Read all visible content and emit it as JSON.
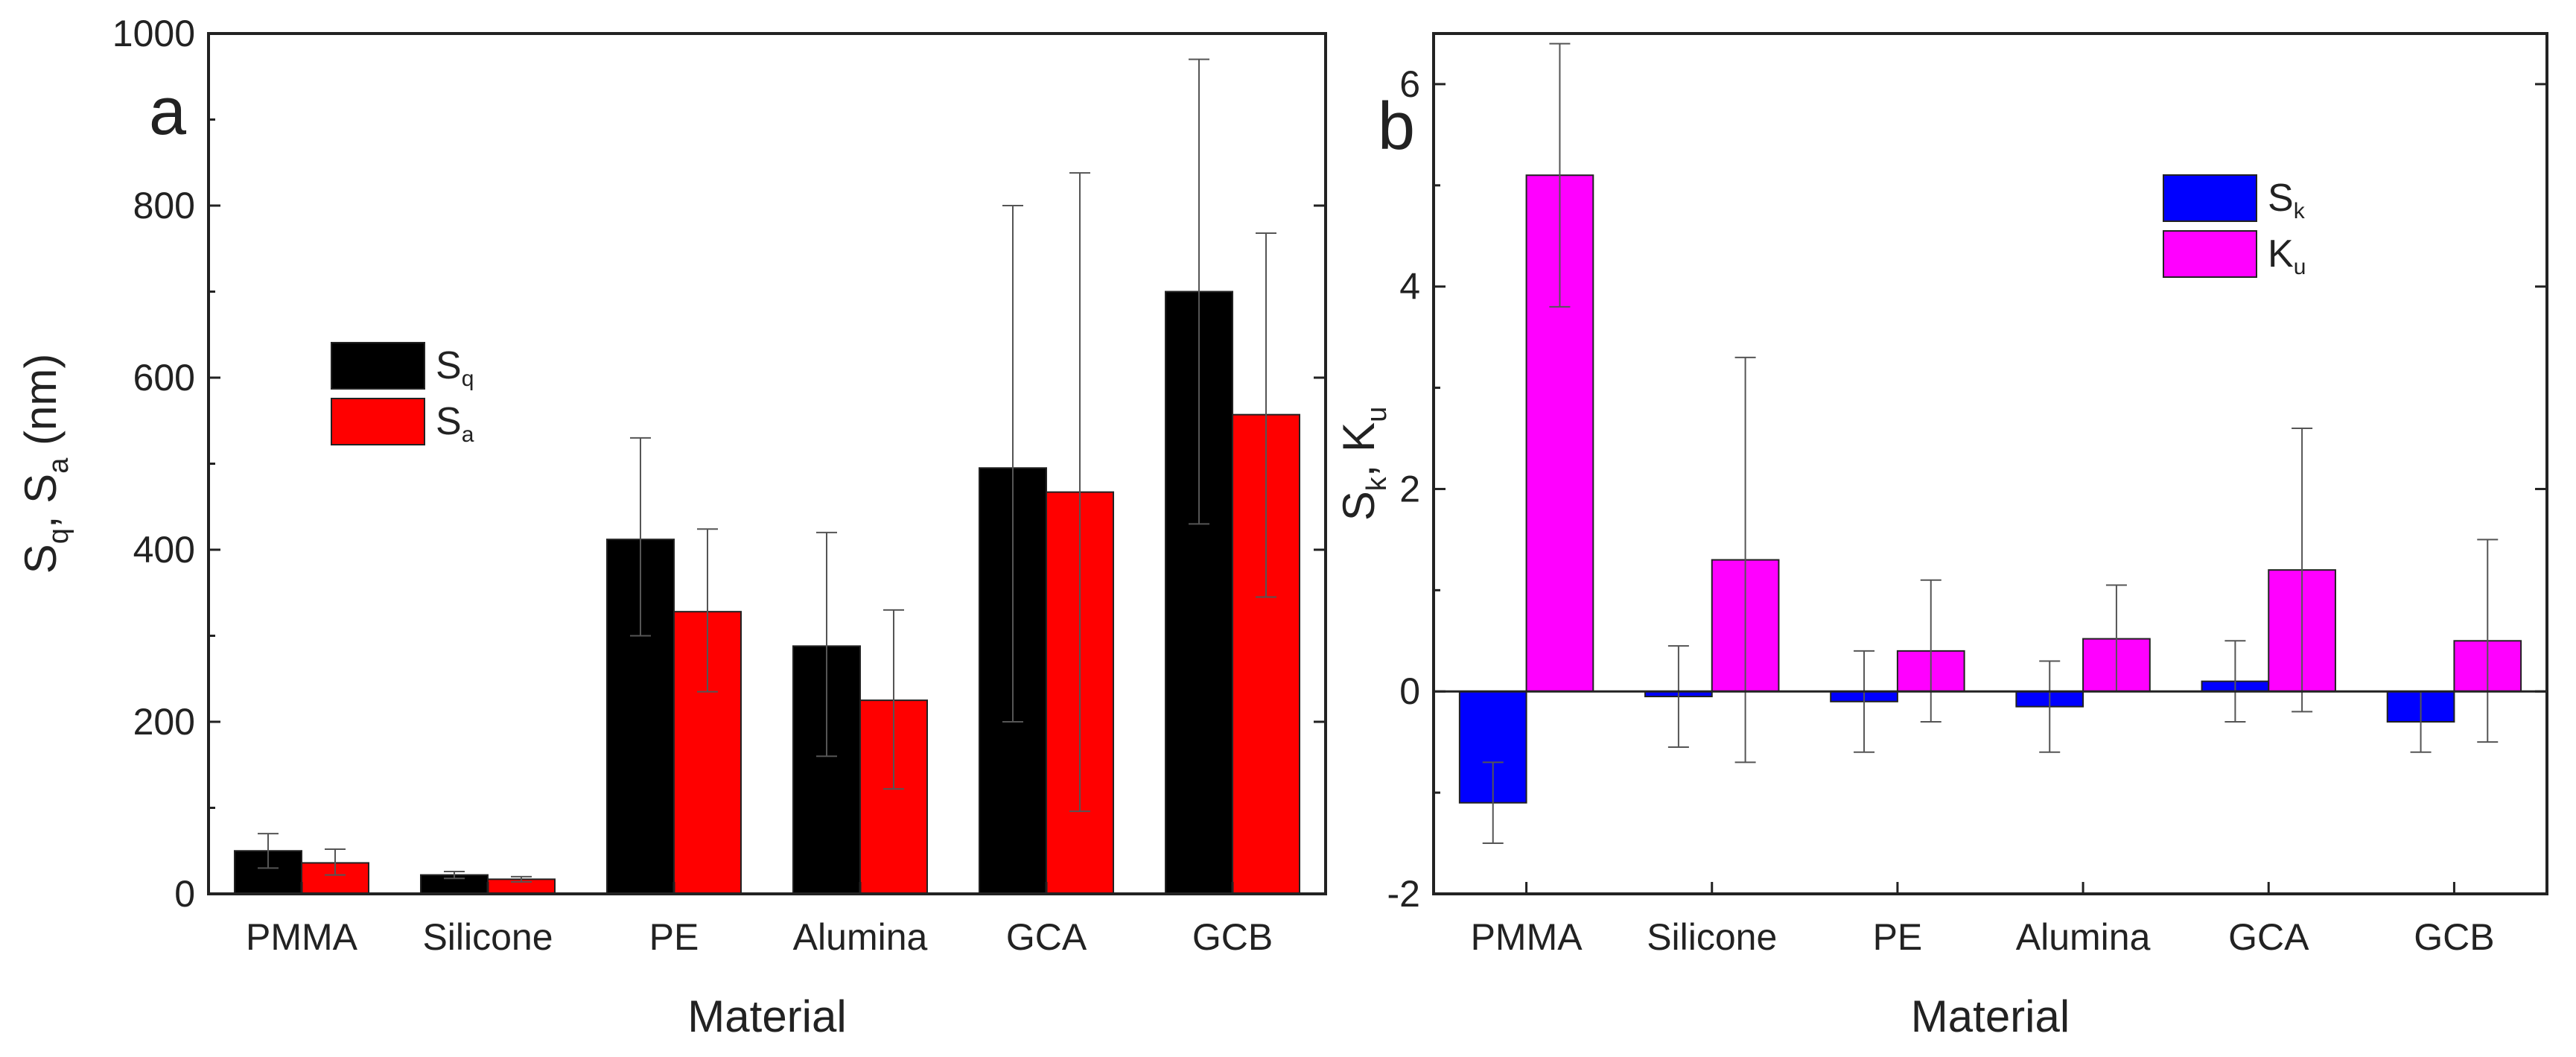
{
  "chart_data": [
    {
      "panel": "a",
      "type": "bar",
      "categories": [
        "PMMA",
        "Silicone",
        "PE",
        "Alumina",
        "GCA",
        "GCB"
      ],
      "xlabel": "Material",
      "ylabel": {
        "main1": "S",
        "sub1": "q",
        "sep": ", ",
        "main2": "S",
        "sub2": "a",
        "unit": " (nm)"
      },
      "ylim": [
        0,
        1000
      ],
      "yticks": [
        0,
        200,
        400,
        600,
        800,
        1000
      ],
      "series": [
        {
          "name": "Sq",
          "label_main": "S",
          "label_sub": "q",
          "color": "#000000",
          "values": [
            50,
            22,
            412,
            288,
            495,
            700
          ],
          "err_low": [
            30,
            18,
            300,
            160,
            200,
            430
          ],
          "err_high": [
            70,
            26,
            530,
            420,
            800,
            970
          ]
        },
        {
          "name": "Sa",
          "label_main": "S",
          "label_sub": "a",
          "color": "#ff0000",
          "values": [
            36,
            17,
            328,
            225,
            467,
            557
          ],
          "err_low": [
            22,
            14,
            235,
            122,
            96,
            345
          ],
          "err_high": [
            52,
            20,
            424,
            330,
            838,
            768
          ]
        }
      ],
      "legend_position": "center-left"
    },
    {
      "panel": "b",
      "type": "bar",
      "categories": [
        "PMMA",
        "Silicone",
        "PE",
        "Alumina",
        "GCA",
        "GCB"
      ],
      "xlabel": "Material",
      "ylabel": {
        "main1": "S",
        "sub1": "k",
        "sep": ", ",
        "main2": "K",
        "sub2": "u",
        "unit": ""
      },
      "ylim": [
        -2,
        6.5
      ],
      "yticks": [
        -2,
        0,
        2,
        4,
        6
      ],
      "series": [
        {
          "name": "Sk",
          "label_main": "S",
          "label_sub": "k",
          "color": "#0000ff",
          "values": [
            -1.1,
            -0.05,
            -0.1,
            -0.15,
            0.1,
            -0.3
          ],
          "err_low": [
            -1.5,
            -0.55,
            -0.6,
            -0.6,
            -0.3,
            -0.6
          ],
          "err_high": [
            -0.7,
            0.45,
            0.4,
            0.3,
            0.5,
            0.0
          ]
        },
        {
          "name": "Ku",
          "label_main": "K",
          "label_sub": "u",
          "color": "#ff00ff",
          "values": [
            5.1,
            1.3,
            0.4,
            0.52,
            1.2,
            0.5
          ],
          "err_low": [
            3.8,
            -0.7,
            -0.3,
            0.0,
            -0.2,
            -0.5
          ],
          "err_high": [
            6.4,
            3.3,
            1.1,
            1.05,
            2.6,
            1.5
          ]
        }
      ],
      "legend_position": "top-right"
    }
  ]
}
